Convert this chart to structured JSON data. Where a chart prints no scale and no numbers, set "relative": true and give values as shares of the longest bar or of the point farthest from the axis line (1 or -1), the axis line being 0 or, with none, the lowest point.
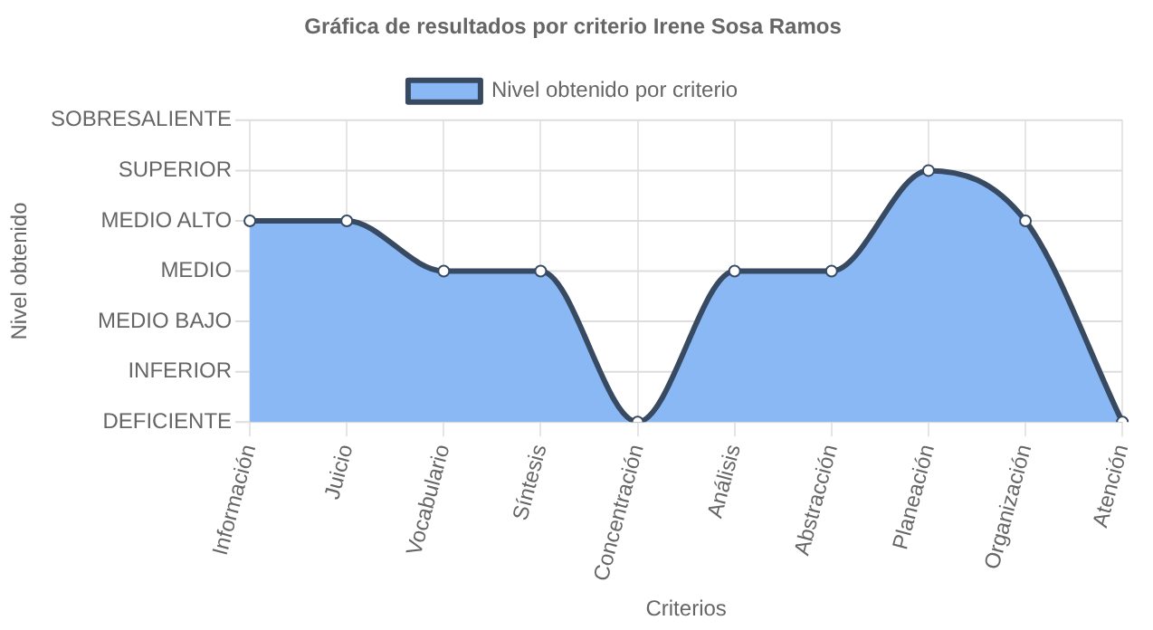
{
  "chart_data": {
    "type": "area",
    "title": "Gráfica de resultados por criterio Irene Sosa Ramos",
    "xlabel": "Criterios",
    "annotations": [
      "Nivel obtenido"
    ],
    "categories": [
      "Información",
      "Juicio",
      "Vocabulario",
      "Síntesis",
      "Concentración",
      "Análisis",
      "Abstracción",
      "Planeación",
      "Organización",
      "Atención"
    ],
    "series": [
      {
        "name": "Nivel obtenido por criterio",
        "color": "#8ab8f4",
        "values": [
          0.8,
          0.8,
          0.6,
          0.6,
          0,
          0.6,
          0.6,
          1,
          0.8,
          0
        ]
      }
    ],
    "relative": true,
    "ref_lines": [
      {
        "axis": "y",
        "value": 0,
        "label": "DEFICIENTE",
        "color": "#dddddd"
      },
      {
        "axis": "y",
        "value": 0.2,
        "label": "INFERIOR",
        "color": "#dddddd"
      },
      {
        "axis": "y",
        "value": 0.4,
        "label": "MEDIO BAJO",
        "color": "#dddddd"
      },
      {
        "axis": "y",
        "value": 0.6,
        "label": "MEDIO",
        "color": "#dddddd"
      },
      {
        "axis": "y",
        "value": 0.8,
        "label": "MEDIO ALTO",
        "color": "#dddddd"
      },
      {
        "axis": "y",
        "value": 1,
        "label": "SUPERIOR",
        "color": "#dddddd"
      },
      {
        "axis": "y",
        "value": 1.2,
        "label": "SOBRESALIENTE",
        "color": "#dddddd"
      }
    ],
    "grid": "x",
    "legend": "top",
    "marker": "circle"
  }
}
